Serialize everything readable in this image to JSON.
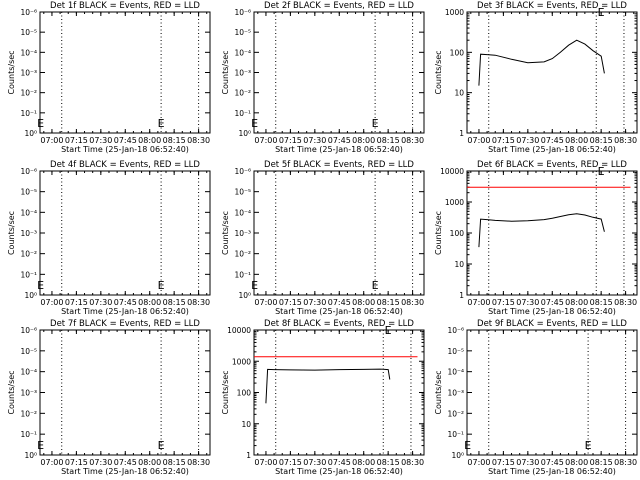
{
  "colors": {
    "events": "#000000",
    "lld": "#ff0000",
    "axes": "#000000"
  },
  "chart_data": [
    {
      "type": "line",
      "title": "Det 1f BLACK = Events, RED = LLD",
      "xlabel": "Start Time (25-Jan-18 06:52:40)",
      "ylabel": "Counts/sec",
      "x_ticks": [
        "07:00",
        "07:15",
        "07:30",
        "07:45",
        "08:00",
        "08:15",
        "08:30"
      ],
      "xlim": [
        "06:52:40",
        "08:37:00"
      ],
      "y_scale": "log",
      "ylim": [
        1,
        1e-06
      ],
      "y_ticks": [
        "10⁰",
        "10⁻¹",
        "10⁻²",
        "10⁻³",
        "10⁻⁴",
        "10⁻⁵",
        "10⁻⁶"
      ],
      "markers": [
        "06:53:00",
        "08:07:00"
      ],
      "marker_label": "E",
      "dotted_lines": [
        "07:06:00",
        "08:07:00",
        "08:30:00"
      ],
      "series": []
    },
    {
      "type": "line",
      "title": "Det 2f BLACK = Events, RED = LLD",
      "xlabel": "Start Time (25-Jan-18 06:52:40)",
      "ylabel": "Counts/sec",
      "x_ticks": [
        "07:00",
        "07:15",
        "07:30",
        "07:45",
        "08:00",
        "08:15",
        "08:30"
      ],
      "xlim": [
        "06:52:40",
        "08:37:00"
      ],
      "y_scale": "log",
      "ylim": [
        1,
        1e-06
      ],
      "y_ticks": [
        "10⁰",
        "10⁻¹",
        "10⁻²",
        "10⁻³",
        "10⁻⁴",
        "10⁻⁵",
        "10⁻⁶"
      ],
      "markers": [
        "06:53:00",
        "08:07:00"
      ],
      "marker_label": "E",
      "dotted_lines": [
        "07:06:00",
        "08:07:00",
        "08:30:00"
      ],
      "series": []
    },
    {
      "type": "line",
      "title": "Det 3f BLACK = Events, RED = LLD",
      "xlabel": "Start Time (25-Jan-18 06:52:40)",
      "ylabel": "Counts/sec",
      "x_ticks": [
        "07:00",
        "07:15",
        "07:30",
        "07:45",
        "08:00",
        "08:15",
        "08:30"
      ],
      "xlim": [
        "06:52:40",
        "08:37:00"
      ],
      "y_scale": "log",
      "ylim": [
        1,
        1000
      ],
      "y_ticks": [
        "1",
        "10",
        "100",
        "1000"
      ],
      "markers": [
        "08:15:00"
      ],
      "marker_label": "E",
      "dotted_lines": [
        "07:06:00",
        "08:12:00",
        "08:29:00"
      ],
      "series": [
        {
          "name": "Events",
          "color": "#000000",
          "x": [
            "07:00",
            "07:01",
            "07:05",
            "07:10",
            "07:20",
            "07:30",
            "07:40",
            "07:45",
            "07:50",
            "07:55",
            "08:00",
            "08:05",
            "08:10",
            "08:15",
            "08:17"
          ],
          "y": [
            15,
            90,
            88,
            85,
            67,
            55,
            58,
            70,
            100,
            150,
            200,
            160,
            110,
            80,
            30
          ]
        }
      ]
    },
    {
      "type": "line",
      "title": "Det 4f BLACK = Events, RED = LLD",
      "xlabel": "Start Time (25-Jan-18 06:52:40)",
      "ylabel": "Counts/sec",
      "x_ticks": [
        "07:00",
        "07:15",
        "07:30",
        "07:45",
        "08:00",
        "08:15",
        "08:30"
      ],
      "xlim": [
        "06:52:40",
        "08:37:00"
      ],
      "y_scale": "log",
      "ylim": [
        1,
        1e-06
      ],
      "y_ticks": [
        "10⁰",
        "10⁻¹",
        "10⁻²",
        "10⁻³",
        "10⁻⁴",
        "10⁻⁵",
        "10⁻⁶"
      ],
      "markers": [
        "06:53:00",
        "08:07:00"
      ],
      "marker_label": "E",
      "dotted_lines": [
        "07:06:00",
        "08:07:00",
        "08:30:00"
      ],
      "series": []
    },
    {
      "type": "line",
      "title": "Det 5f BLACK = Events, RED = LLD",
      "xlabel": "Start Time (25-Jan-18 06:52:40)",
      "ylabel": "Counts/sec",
      "x_ticks": [
        "07:00",
        "07:15",
        "07:30",
        "07:45",
        "08:00",
        "08:15",
        "08:30"
      ],
      "xlim": [
        "06:52:40",
        "08:37:00"
      ],
      "y_scale": "log",
      "ylim": [
        1,
        1e-06
      ],
      "y_ticks": [
        "10⁰",
        "10⁻¹",
        "10⁻²",
        "10⁻³",
        "10⁻⁴",
        "10⁻⁵",
        "10⁻⁶"
      ],
      "markers": [
        "06:53:00",
        "08:07:00"
      ],
      "marker_label": "E",
      "dotted_lines": [
        "07:06:00",
        "08:07:00",
        "08:30:00"
      ],
      "series": []
    },
    {
      "type": "line",
      "title": "Det 6f BLACK = Events, RED = LLD",
      "xlabel": "Start Time (25-Jan-18 06:52:40)",
      "ylabel": "Counts/sec",
      "x_ticks": [
        "07:00",
        "07:15",
        "07:30",
        "07:45",
        "08:00",
        "08:15",
        "08:30"
      ],
      "xlim": [
        "06:52:40",
        "08:37:00"
      ],
      "y_scale": "log",
      "ylim": [
        1,
        10000
      ],
      "y_ticks": [
        "1",
        "10",
        "100",
        "1000",
        "10000"
      ],
      "markers": [
        "08:15:00"
      ],
      "marker_label": "E",
      "dotted_lines": [
        "07:06:00",
        "08:12:00",
        "08:29:00"
      ],
      "series": [
        {
          "name": "Events",
          "color": "#000000",
          "x": [
            "07:00",
            "07:01",
            "07:05",
            "07:10",
            "07:20",
            "07:30",
            "07:40",
            "07:45",
            "07:50",
            "07:55",
            "08:00",
            "08:05",
            "08:10",
            "08:15",
            "08:17"
          ],
          "y": [
            35,
            280,
            270,
            255,
            240,
            250,
            270,
            300,
            340,
            390,
            420,
            380,
            320,
            280,
            110
          ]
        },
        {
          "name": "LLD",
          "color": "#ff0000",
          "x": [
            "06:52:40",
            "08:33:00"
          ],
          "y": [
            3000,
            3000
          ]
        }
      ]
    },
    {
      "type": "line",
      "title": "Det 7f BLACK = Events, RED = LLD",
      "xlabel": "Start Time (25-Jan-18 06:52:40)",
      "ylabel": "Counts/sec",
      "x_ticks": [
        "07:00",
        "07:15",
        "07:30",
        "07:45",
        "08:00",
        "08:15",
        "08:30"
      ],
      "xlim": [
        "06:52:40",
        "08:37:00"
      ],
      "y_scale": "log",
      "ylim": [
        1,
        1e-06
      ],
      "y_ticks": [
        "10⁰",
        "10⁻¹",
        "10⁻²",
        "10⁻³",
        "10⁻⁴",
        "10⁻⁵",
        "10⁻⁶"
      ],
      "markers": [
        "06:53:00",
        "08:07:00"
      ],
      "marker_label": "E",
      "dotted_lines": [
        "07:06:00",
        "08:07:00",
        "08:30:00"
      ],
      "series": []
    },
    {
      "type": "line",
      "title": "Det 8f BLACK = Events, RED = LLD",
      "xlabel": "Start Time (25-Jan-18 06:52:40)",
      "ylabel": "Counts/sec",
      "x_ticks": [
        "07:00",
        "07:15",
        "07:30",
        "07:45",
        "08:00",
        "08:15",
        "08:30"
      ],
      "xlim": [
        "06:52:40",
        "08:37:00"
      ],
      "y_scale": "log",
      "ylim": [
        1,
        10000
      ],
      "y_ticks": [
        "1",
        "10",
        "100",
        "1000",
        "10000"
      ],
      "markers": [
        "08:15:00"
      ],
      "marker_label": "E",
      "dotted_lines": [
        "07:06:00",
        "08:12:00",
        "08:29:00"
      ],
      "series": [
        {
          "name": "Events",
          "color": "#000000",
          "x": [
            "07:00",
            "07:01",
            "07:05",
            "07:15",
            "07:30",
            "07:45",
            "08:00",
            "08:10",
            "08:15",
            "08:16"
          ],
          "y": [
            45,
            550,
            540,
            530,
            520,
            540,
            550,
            560,
            540,
            260
          ]
        },
        {
          "name": "LLD",
          "color": "#ff0000",
          "x": [
            "06:52:40",
            "08:33:00"
          ],
          "y": [
            1400,
            1400
          ]
        }
      ]
    },
    {
      "type": "line",
      "title": "Det 9f BLACK = Events, RED = LLD",
      "xlabel": "Start Time (25-Jan-18 06:52:40)",
      "ylabel": "Counts/sec",
      "x_ticks": [
        "07:00",
        "07:15",
        "07:30",
        "07:45",
        "08:00",
        "08:15",
        "08:30"
      ],
      "xlim": [
        "06:52:40",
        "08:37:00"
      ],
      "y_scale": "log",
      "ylim": [
        1,
        1e-06
      ],
      "y_ticks": [
        "10⁰",
        "10⁻¹",
        "10⁻²",
        "10⁻³",
        "10⁻⁴",
        "10⁻⁵",
        "10⁻⁶"
      ],
      "markers": [
        "06:53:00",
        "08:07:00"
      ],
      "marker_label": "E",
      "dotted_lines": [
        "07:06:00",
        "08:07:00",
        "08:30:00"
      ],
      "series": []
    }
  ]
}
